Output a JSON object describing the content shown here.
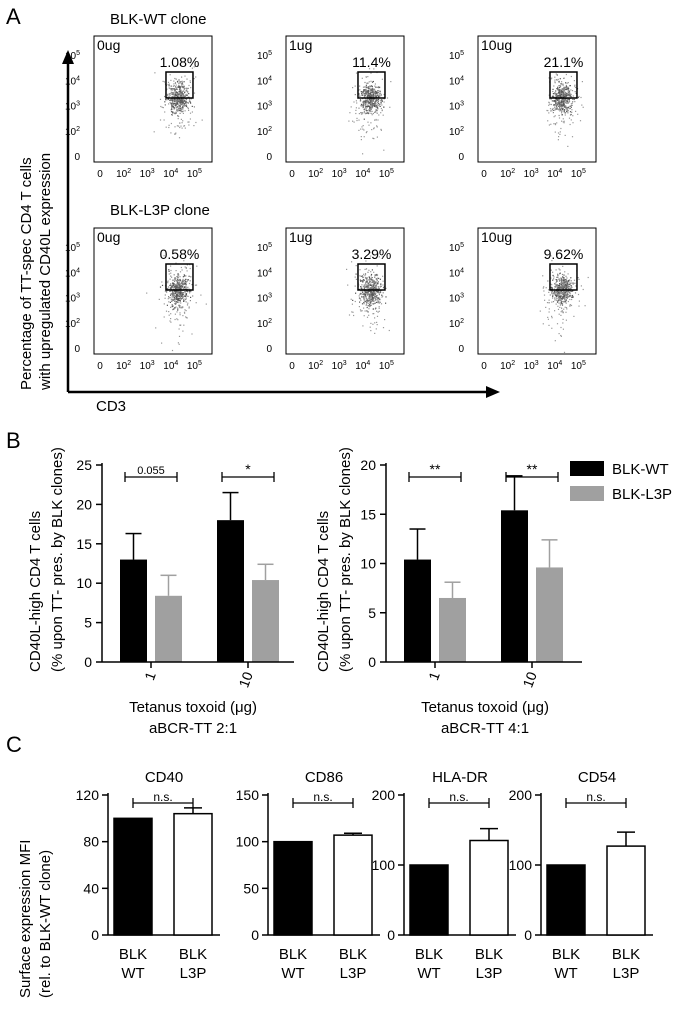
{
  "panel_labels": {
    "a": "A",
    "b": "B",
    "c": "C"
  },
  "chart_data": [
    {
      "type": "scatter",
      "panel": "A",
      "subtype": "flow-cytometry-density",
      "ylabel_line1": "Percentage of TT-spec CD4 T cells",
      "ylabel_line2": "with upregulated CD40L expression",
      "xlabel": "CD3",
      "axis_ticks": [
        "0",
        "10",
        "10",
        "10",
        "10"
      ],
      "axis_tick_exponents": [
        "",
        "2",
        "3",
        "4",
        "5"
      ],
      "rows": [
        {
          "title": "BLK-WT clone",
          "plots": [
            {
              "dose": "0ug",
              "gate_percent": "1.08%"
            },
            {
              "dose": "1ug",
              "gate_percent": "11.4%"
            },
            {
              "dose": "10ug",
              "gate_percent": "21.1%"
            }
          ]
        },
        {
          "title": "BLK-L3P clone",
          "plots": [
            {
              "dose": "0ug",
              "gate_percent": "0.58%"
            },
            {
              "dose": "1ug",
              "gate_percent": "3.29%"
            },
            {
              "dose": "10ug",
              "gate_percent": "9.62%"
            }
          ]
        }
      ]
    },
    {
      "type": "bar",
      "panel": "B",
      "categories": [
        "1",
        "10"
      ],
      "series": [
        {
          "name": "BLK-WT",
          "color": "#000000",
          "values": [
            13.0,
            18.0
          ],
          "errors": [
            3.3,
            3.5
          ]
        },
        {
          "name": "BLK-L3P",
          "color": "#a0a0a0",
          "values": [
            8.4,
            10.4
          ],
          "errors": [
            2.6,
            2.0
          ]
        }
      ],
      "ylim": [
        0,
        25
      ],
      "yticks": [
        "0",
        "5",
        "10",
        "15",
        "20",
        "25"
      ],
      "ylabel_line1": "CD40L-high CD4 T cells",
      "ylabel_line2": "(% upon TT- pres. by BLK clones)",
      "xlabel": "Tetanus toxoid (μg)",
      "subtitle": "aBCR-TT 2:1",
      "significance": [
        "0.055",
        "*"
      ]
    },
    {
      "type": "bar",
      "panel": "B",
      "categories": [
        "1",
        "10"
      ],
      "series": [
        {
          "name": "BLK-WT",
          "color": "#000000",
          "values": [
            10.4,
            15.4
          ],
          "errors": [
            3.1,
            3.5
          ]
        },
        {
          "name": "BLK-L3P",
          "color": "#a0a0a0",
          "values": [
            6.5,
            9.6
          ],
          "errors": [
            1.6,
            2.8
          ]
        }
      ],
      "ylim": [
        0,
        20
      ],
      "yticks": [
        "0",
        "5",
        "10",
        "15",
        "20"
      ],
      "ylabel_line1": "CD40L-high CD4 T cells",
      "ylabel_line2": "(% upon TT- pres. by BLK clones)",
      "xlabel": "Tetanus toxoid (μg)",
      "subtitle": "aBCR-TT 4:1",
      "significance": [
        "**",
        "**"
      ],
      "legend": [
        {
          "name": "BLK-WT",
          "color": "#000000"
        },
        {
          "name": "BLK-L3P",
          "color": "#a0a0a0"
        }
      ],
      "legend_position": "top-right"
    },
    {
      "type": "bar",
      "panel": "C",
      "ylabel_line1": "Surface expression MFI",
      "ylabel_line2": "(rel. to BLK-WT clone)",
      "category_line1": [
        "BLK",
        "BLK"
      ],
      "category_line2": [
        "WT",
        "L3P"
      ],
      "bar_fill": [
        "#000000",
        "#ffffff"
      ],
      "subplots": [
        {
          "title": "CD40",
          "values": [
            100,
            104
          ],
          "errors": [
            0,
            5
          ],
          "ylim": [
            0,
            120
          ],
          "yticks": [
            "0",
            "40",
            "80",
            "120"
          ],
          "significance": "n.s."
        },
        {
          "title": "CD86",
          "values": [
            100,
            107
          ],
          "errors": [
            0,
            2
          ],
          "ylim": [
            0,
            150
          ],
          "yticks": [
            "0",
            "50",
            "100",
            "150"
          ],
          "significance": "n.s."
        },
        {
          "title": "HLA-DR",
          "values": [
            100,
            135
          ],
          "errors": [
            0,
            17
          ],
          "ylim": [
            0,
            200
          ],
          "yticks": [
            "0",
            "100",
            "200"
          ],
          "significance": "n.s."
        },
        {
          "title": "CD54",
          "values": [
            100,
            127
          ],
          "errors": [
            0,
            20
          ],
          "ylim": [
            0,
            200
          ],
          "yticks": [
            "0",
            "100",
            "200"
          ],
          "significance": "n.s."
        }
      ]
    }
  ]
}
